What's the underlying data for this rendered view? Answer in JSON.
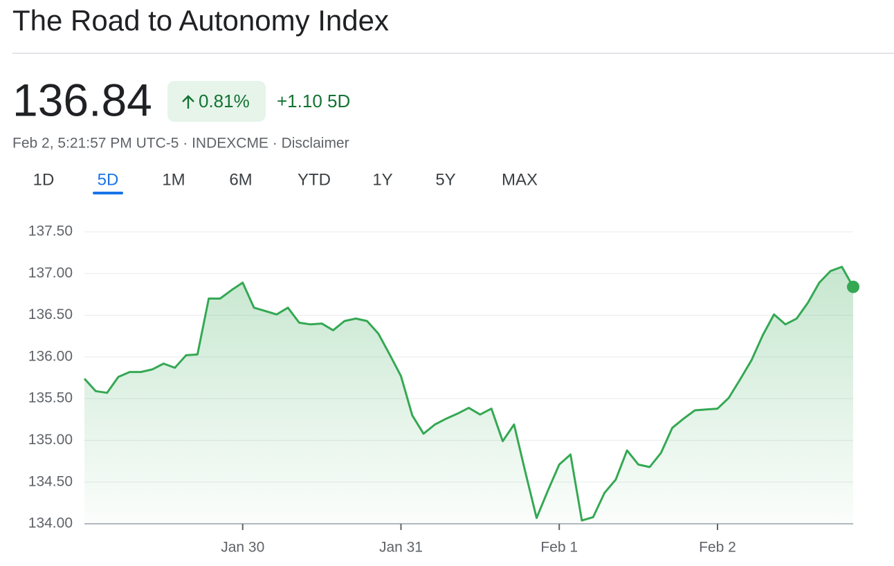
{
  "header": {
    "title": "The Road to Autonomy Index"
  },
  "quote": {
    "price": "136.84",
    "change_pct": "0.81%",
    "change": "+1.10 5D",
    "meta": "Feb 2, 5:21:57 PM UTC-5 · INDEXCME · Disclaimer"
  },
  "tabs": [
    "1D",
    "5D",
    "1M",
    "6M",
    "YTD",
    "1Y",
    "5Y",
    "MAX"
  ],
  "active_tab": 1,
  "chart_data": {
    "type": "line",
    "x": [
      0,
      1,
      2,
      3,
      4,
      5,
      6,
      7,
      8,
      9,
      10,
      11,
      12,
      13,
      14,
      15,
      16,
      17,
      18,
      19,
      20,
      21,
      22,
      23,
      24,
      25,
      26,
      27,
      28,
      29,
      30,
      31,
      32,
      33,
      34,
      35,
      36,
      37,
      38,
      39,
      40,
      41,
      42,
      43,
      44,
      45,
      46,
      47,
      48,
      49,
      50,
      51,
      52,
      53,
      54,
      55,
      56,
      57,
      58,
      59,
      60,
      61,
      62,
      63,
      64,
      65,
      66,
      67,
      68
    ],
    "series": [
      {
        "color": "#34a853",
        "values": [
          135.74,
          135.59,
          135.57,
          135.76,
          135.82,
          135.82,
          135.85,
          135.92,
          135.87,
          136.02,
          136.03,
          136.7,
          136.7,
          136.8,
          136.89,
          136.59,
          136.55,
          136.51,
          136.59,
          136.41,
          136.39,
          136.4,
          136.32,
          136.43,
          136.46,
          136.43,
          136.28,
          136.03,
          135.77,
          135.3,
          135.08,
          135.19,
          135.26,
          135.32,
          135.39,
          135.31,
          135.38,
          134.99,
          135.19,
          134.62,
          134.07,
          134.4,
          134.71,
          134.83,
          134.04,
          134.08,
          134.37,
          134.53,
          134.88,
          134.71,
          134.68,
          134.85,
          135.15,
          135.26,
          135.36,
          135.37,
          135.38,
          135.51,
          135.73,
          135.96,
          136.26,
          136.51,
          136.39,
          136.46,
          136.65,
          136.89,
          137.03,
          137.08,
          136.84
        ]
      }
    ],
    "xlim": [
      0,
      68
    ],
    "xticks": [
      {
        "value": 14,
        "label": "Jan 30"
      },
      {
        "value": 28,
        "label": "Jan 31"
      },
      {
        "value": 42,
        "label": "Feb 1"
      },
      {
        "value": 56,
        "label": "Feb 2"
      }
    ],
    "ylim": [
      134,
      137.5
    ],
    "yticks": [
      {
        "value": 134,
        "label": "134.00"
      },
      {
        "value": 134.5,
        "label": "134.50"
      },
      {
        "value": 135,
        "label": "135.00"
      },
      {
        "value": 135.5,
        "label": "135.50"
      },
      {
        "value": 136,
        "label": "136.00"
      },
      {
        "value": 136.5,
        "label": "136.50"
      },
      {
        "value": 137,
        "label": "137.00"
      },
      {
        "value": 137.5,
        "label": "137.50"
      }
    ],
    "grid": true
  }
}
